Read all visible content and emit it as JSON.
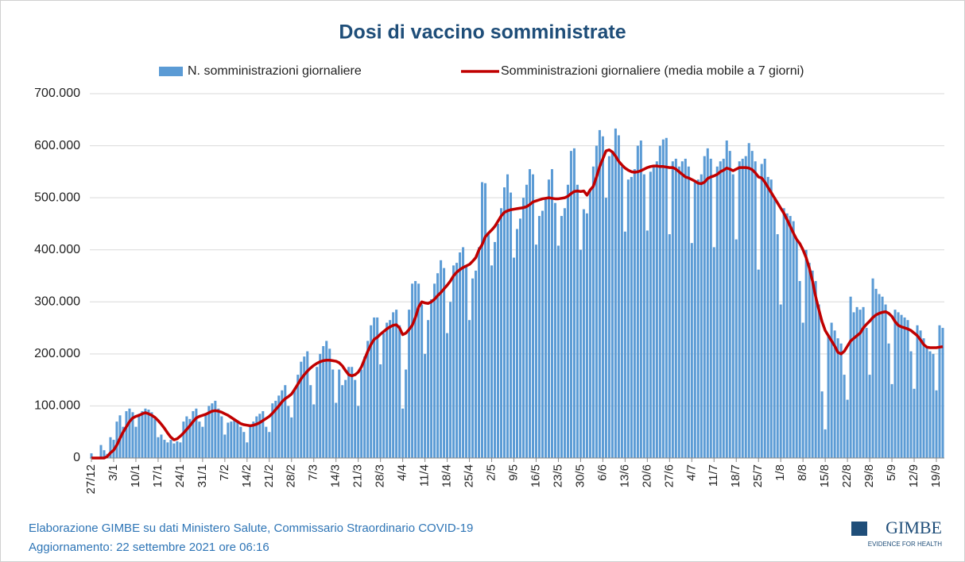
{
  "chart_data": {
    "type": "bar_line",
    "title": "Dosi di vaccino somministrate",
    "categories": [
      "27/12",
      null,
      null,
      null,
      null,
      null,
      null,
      "3/1",
      null,
      null,
      null,
      null,
      null,
      null,
      "10/1",
      null,
      null,
      null,
      null,
      null,
      null,
      "17/1",
      null,
      null,
      null,
      null,
      null,
      null,
      "24/1",
      null,
      null,
      null,
      null,
      null,
      null,
      "31/1",
      null,
      null,
      null,
      null,
      null,
      null,
      "7/2",
      null,
      null,
      null,
      null,
      null,
      null,
      "14/2",
      null,
      null,
      null,
      null,
      null,
      null,
      "21/2",
      null,
      null,
      null,
      null,
      null,
      null,
      "28/2",
      null,
      null,
      null,
      null,
      null,
      null,
      "7/3",
      null,
      null,
      null,
      null,
      null,
      null,
      "14/3",
      null,
      null,
      null,
      null,
      null,
      null,
      "21/3",
      null,
      null,
      null,
      null,
      null,
      null,
      "28/3",
      null,
      null,
      null,
      null,
      null,
      null,
      "4/4",
      null,
      null,
      null,
      null,
      null,
      null,
      "11/4",
      null,
      null,
      null,
      null,
      null,
      null,
      "18/4",
      null,
      null,
      null,
      null,
      null,
      null,
      "25/4",
      null,
      null,
      null,
      null,
      null,
      null,
      "2/5",
      null,
      null,
      null,
      null,
      null,
      null,
      "9/5",
      null,
      null,
      null,
      null,
      null,
      null,
      "16/5",
      null,
      null,
      null,
      null,
      null,
      null,
      "23/5",
      null,
      null,
      null,
      null,
      null,
      null,
      "30/5",
      null,
      null,
      null,
      null,
      null,
      null,
      "6/6",
      null,
      null,
      null,
      null,
      null,
      null,
      "13/6",
      null,
      null,
      null,
      null,
      null,
      null,
      "20/6",
      null,
      null,
      null,
      null,
      null,
      null,
      "27/6",
      null,
      null,
      null,
      null,
      null,
      null,
      "4/7",
      null,
      null,
      null,
      null,
      null,
      null,
      "11/7",
      null,
      null,
      null,
      null,
      null,
      null,
      "18/7",
      null,
      null,
      null,
      null,
      null,
      null,
      "25/7",
      null,
      null,
      null,
      null,
      null,
      null,
      "1/8",
      null,
      null,
      null,
      null,
      null,
      null,
      "8/8",
      null,
      null,
      null,
      null,
      null,
      null,
      "15/8",
      null,
      null,
      null,
      null,
      null,
      null,
      "22/8",
      null,
      null,
      null,
      null,
      null,
      null,
      "29/8",
      null,
      null,
      null,
      null,
      null,
      null,
      "5/9",
      null,
      null,
      null,
      null,
      null,
      null,
      "12/9",
      null,
      null,
      null,
      null,
      null,
      null,
      "19/9",
      null,
      null
    ],
    "series": [
      {
        "name": "N. somministrazioni giornaliere",
        "color": "#5b9bd5",
        "type": "bar",
        "values": [
          9000,
          1000,
          2000,
          25000,
          15000,
          8000,
          40000,
          35000,
          70000,
          82000,
          60000,
          90000,
          95000,
          88000,
          60000,
          85000,
          90000,
          95000,
          93000,
          88000,
          75000,
          40000,
          45000,
          35000,
          30000,
          35000,
          28000,
          32000,
          30000,
          70000,
          80000,
          75000,
          90000,
          95000,
          70000,
          60000,
          85000,
          100000,
          105000,
          110000,
          95000,
          80000,
          45000,
          68000,
          70000,
          75000,
          72000,
          60000,
          50000,
          30000,
          60000,
          70000,
          80000,
          85000,
          90000,
          60000,
          50000,
          105000,
          110000,
          120000,
          130000,
          140000,
          100000,
          78000,
          135000,
          160000,
          185000,
          195000,
          205000,
          140000,
          103000,
          175000,
          200000,
          215000,
          225000,
          210000,
          170000,
          106000,
          170000,
          140000,
          150000,
          175000,
          175000,
          150000,
          100000,
          170000,
          195000,
          225000,
          255000,
          270000,
          270000,
          180000,
          240000,
          260000,
          265000,
          280000,
          285000,
          255000,
          95000,
          170000,
          285000,
          335000,
          340000,
          335000,
          295000,
          200000,
          265000,
          305000,
          335000,
          355000,
          380000,
          365000,
          240000,
          300000,
          370000,
          375000,
          395000,
          405000,
          370000,
          265000,
          345000,
          360000,
          405000,
          530000,
          528000,
          430000,
          370000,
          415000,
          450000,
          480000,
          520000,
          545000,
          510000,
          385000,
          440000,
          460000,
          500000,
          525000,
          555000,
          545000,
          410000,
          465000,
          475000,
          500000,
          535000,
          555000,
          490000,
          408000,
          465000,
          480000,
          525000,
          590000,
          595000,
          525000,
          400000,
          478000,
          470000,
          515000,
          560000,
          600000,
          630000,
          618000,
          500000,
          580000,
          590000,
          633000,
          620000,
          560000,
          435000,
          535000,
          540000,
          555000,
          600000,
          610000,
          545000,
          437000,
          550000,
          560000,
          570000,
          600000,
          612000,
          615000,
          430000,
          570000,
          575000,
          560000,
          570000,
          575000,
          560000,
          413000,
          530000,
          535000,
          545000,
          580000,
          595000,
          575000,
          405000,
          560000,
          570000,
          575000,
          610000,
          590000,
          545000,
          420000,
          570000,
          575000,
          580000,
          605000,
          590000,
          570000,
          362000,
          565000,
          575000,
          540000,
          535000,
          500000,
          430000,
          295000,
          480000,
          470000,
          465000,
          455000,
          420000,
          340000,
          260000,
          400000,
          375000,
          360000,
          340000,
          295000,
          128000,
          55000,
          235000,
          260000,
          245000,
          230000,
          220000,
          160000,
          112000,
          310000,
          280000,
          290000,
          285000,
          290000,
          250000,
          160000,
          345000,
          325000,
          315000,
          310000,
          295000,
          220000,
          142000,
          285000,
          280000,
          275000,
          270000,
          265000,
          205000,
          133000,
          255000,
          245000,
          230000,
          215000,
          205000,
          200000,
          130000,
          255000,
          250000
        ]
      },
      {
        "name": "Somministrazioni giornaliere (media mobile a 7 giorni)",
        "color": "#c00000",
        "type": "line",
        "values": [
          0,
          0,
          0,
          0,
          0,
          3000,
          10000,
          15000,
          25000,
          38000,
          50000,
          60000,
          70000,
          77000,
          80000,
          82000,
          85000,
          87000,
          85000,
          82000,
          78000,
          72000,
          65000,
          57000,
          48000,
          40000,
          35000,
          37000,
          42000,
          48000,
          55000,
          62000,
          70000,
          77000,
          80000,
          82000,
          84000,
          87000,
          90000,
          91000,
          90000,
          88000,
          85000,
          82000,
          78000,
          74000,
          70000,
          66000,
          64000,
          63000,
          62000,
          63000,
          65000,
          68000,
          72000,
          76000,
          80000,
          86000,
          93000,
          100000,
          108000,
          114000,
          118000,
          123000,
          132000,
          142000,
          152000,
          160000,
          167000,
          173000,
          178000,
          182000,
          185000,
          187000,
          188000,
          188000,
          187000,
          186000,
          183000,
          177000,
          168000,
          160000,
          158000,
          160000,
          165000,
          175000,
          190000,
          205000,
          218000,
          228000,
          232000,
          238000,
          243000,
          248000,
          252000,
          255000,
          256000,
          250000,
          237000,
          240000,
          247000,
          255000,
          270000,
          290000,
          300000,
          298000,
          297000,
          300000,
          305000,
          312000,
          318000,
          325000,
          332000,
          340000,
          350000,
          357000,
          362000,
          366000,
          369000,
          372000,
          378000,
          385000,
          400000,
          410000,
          425000,
          432000,
          438000,
          445000,
          455000,
          465000,
          472000,
          475000,
          477000,
          478000,
          479000,
          480000,
          481000,
          483000,
          487000,
          492000,
          494000,
          496000,
          498000,
          499000,
          500000,
          499000,
          498000,
          498000,
          499000,
          500000,
          503000,
          508000,
          512000,
          513000,
          512000,
          513000,
          505000,
          515000,
          522000,
          540000,
          560000,
          575000,
          590000,
          592000,
          588000,
          580000,
          570000,
          563000,
          557000,
          553000,
          550000,
          549000,
          550000,
          552000,
          555000,
          558000,
          560000,
          561000,
          561000,
          560000,
          560000,
          559000,
          558000,
          558000,
          555000,
          550000,
          545000,
          540000,
          538000,
          535000,
          532000,
          528000,
          527000,
          530000,
          537000,
          540000,
          542000,
          545000,
          550000,
          553000,
          557000,
          555000,
          552000,
          555000,
          558000,
          558000,
          558000,
          557000,
          554000,
          548000,
          540000,
          538000,
          530000,
          520000,
          510000,
          500000,
          490000,
          480000,
          470000,
          458000,
          445000,
          432000,
          420000,
          412000,
          400000,
          385000,
          365000,
          340000,
          310000,
          285000,
          262000,
          245000,
          235000,
          225000,
          215000,
          203000,
          200000,
          205000,
          215000,
          225000,
          230000,
          235000,
          240000,
          250000,
          257000,
          263000,
          270000,
          275000,
          278000,
          280000,
          281000,
          278000,
          272000,
          262000,
          255000,
          252000,
          250000,
          248000,
          245000,
          240000,
          235000,
          227000,
          218000,
          213000,
          212000,
          212000,
          212000,
          213000,
          214000
        ]
      }
    ],
    "ylim": [
      0,
      700000
    ],
    "yticks": [
      0,
      {
        "value": 100000,
        "label": "100.000"
      },
      {
        "value": 200000,
        "label": "200.000"
      },
      {
        "value": 300000,
        "label": "300.000"
      },
      {
        "value": 400000,
        "label": "400.000"
      },
      {
        "value": 500000,
        "label": "500.000"
      },
      {
        "value": 600000,
        "label": "600.000"
      },
      {
        "value": 700000,
        "label": "700.000"
      }
    ],
    "grid": true,
    "legend": "top",
    "footer": [
      "Elaborazione GIMBE su dati Ministero Salute, Commissario Straordinario COVID-19",
      "Aggiornamento: 22 settembre 2021 ore 06:16"
    ],
    "logo": {
      "name": "GIMBE",
      "tagline": "EVIDENCE FOR HEALTH"
    }
  }
}
